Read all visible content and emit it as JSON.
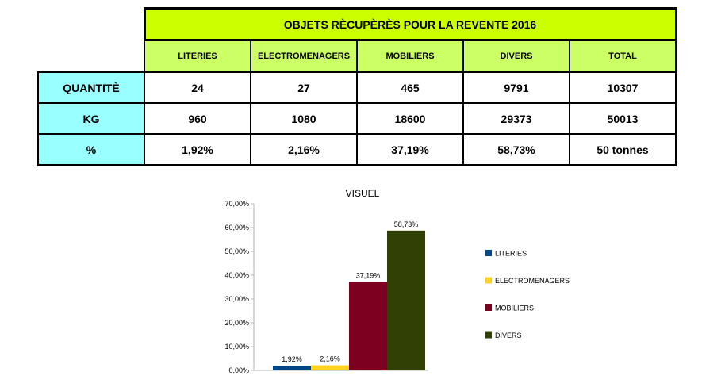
{
  "table": {
    "title": "OBJETS RÈCUPÈRÈS POUR LA REVENTE 2016",
    "columns": [
      "LITERIES",
      "ELECTROMENAGERS",
      "MOBILIERS",
      "DIVERS",
      "TOTAL"
    ],
    "rows": [
      {
        "label": "QUANTITÈ",
        "values": [
          "24",
          "27",
          "465",
          "9791",
          "10307"
        ]
      },
      {
        "label": "KG",
        "values": [
          "960",
          "1080",
          "18600",
          "29373",
          "50013"
        ]
      },
      {
        "label": "%",
        "values": [
          "1,92%",
          "2,16%",
          "37,19%",
          "58,73%",
          "50 tonnes"
        ]
      }
    ],
    "colors": {
      "title_bg": "#ccff00",
      "header_bg": "#ccff66",
      "row_header_bg": "#99ffff"
    }
  },
  "chart_data": {
    "type": "bar",
    "title": "VISUEL",
    "xlabel": "",
    "ylabel": "",
    "ylim": [
      0,
      70
    ],
    "yticks": [
      "0,00%",
      "10,00%",
      "20,00%",
      "30,00%",
      "40,00%",
      "50,00%",
      "60,00%",
      "70,00%"
    ],
    "grid": false,
    "legend_position": "right",
    "series": [
      {
        "name": "LITERIES",
        "value": 1.92,
        "label": "1,92%",
        "color": "#004586"
      },
      {
        "name": "ELECTROMENAGERS",
        "value": 2.16,
        "label": "2,16%",
        "color": "#ffd320"
      },
      {
        "name": "MOBILIERS",
        "value": 37.19,
        "label": "37,19%",
        "color": "#7e0021"
      },
      {
        "name": "DIVERS",
        "value": 58.73,
        "label": "58,73%",
        "color": "#314004"
      }
    ]
  }
}
